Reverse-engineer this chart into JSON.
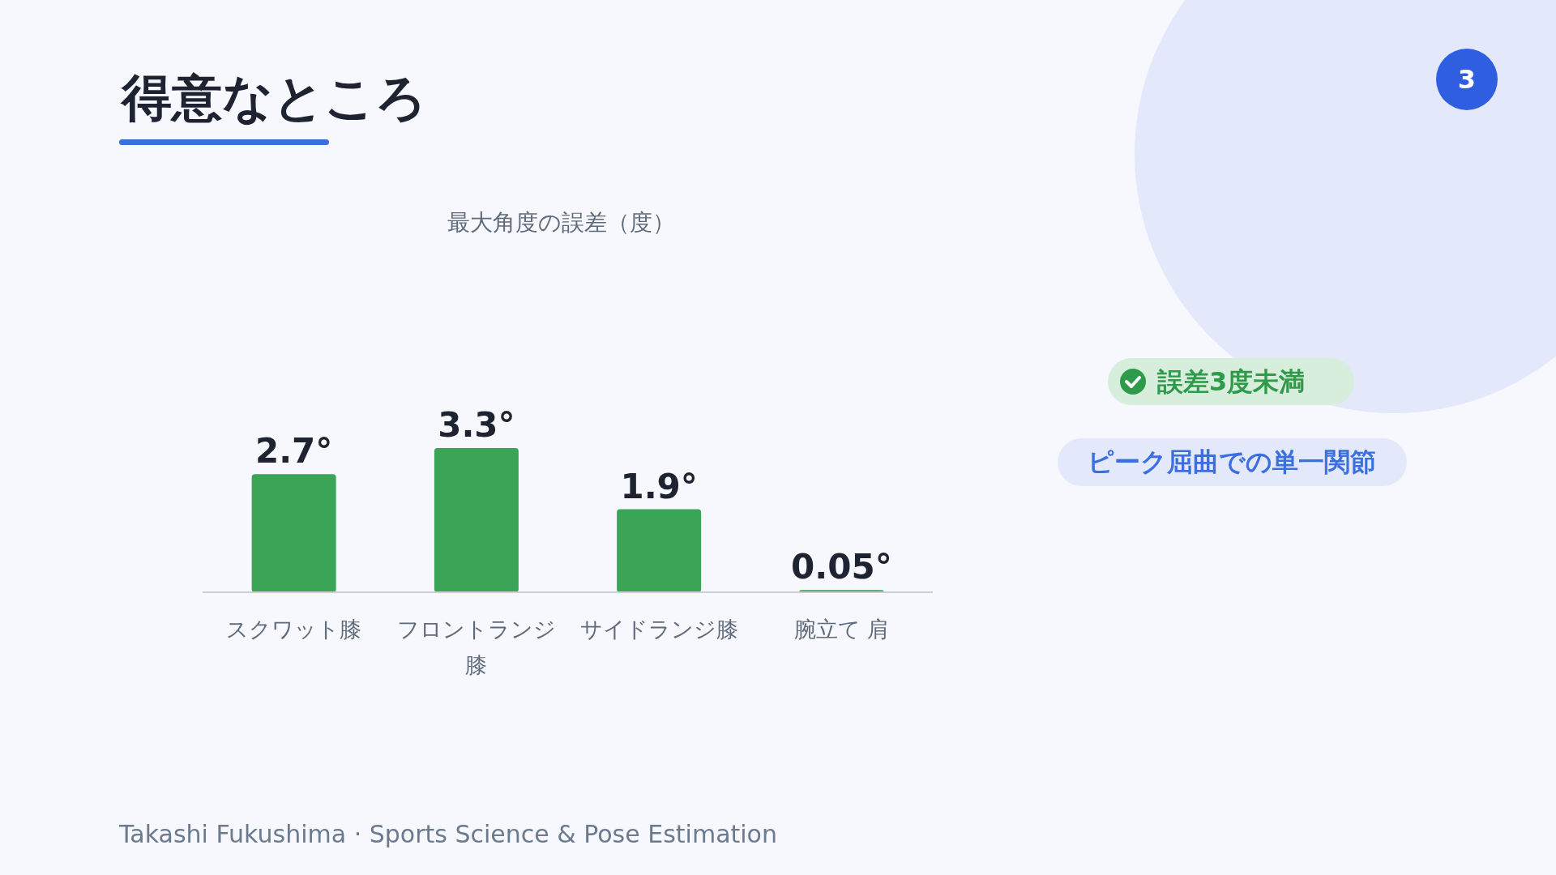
{
  "chart_data": {
    "type": "bar",
    "title": "得意なところ",
    "subtitle": "最大角度の誤差（度）",
    "categories": [
      "スクワット膝",
      "フロントランジ膝",
      "サイドランジ膝",
      "腕立て 肩"
    ],
    "values": [
      2.7,
      3.3,
      1.9,
      0.05
    ],
    "value_labels": [
      "2.7°",
      "3.3°",
      "1.9°",
      "0.05°"
    ],
    "color": "#3aa556",
    "annotations": [
      "3",
      "誤差3度未満",
      "ピーク屈曲での単一関節",
      "Takashi Fukushima · Sports Science & Pose Estimation"
    ]
  }
}
